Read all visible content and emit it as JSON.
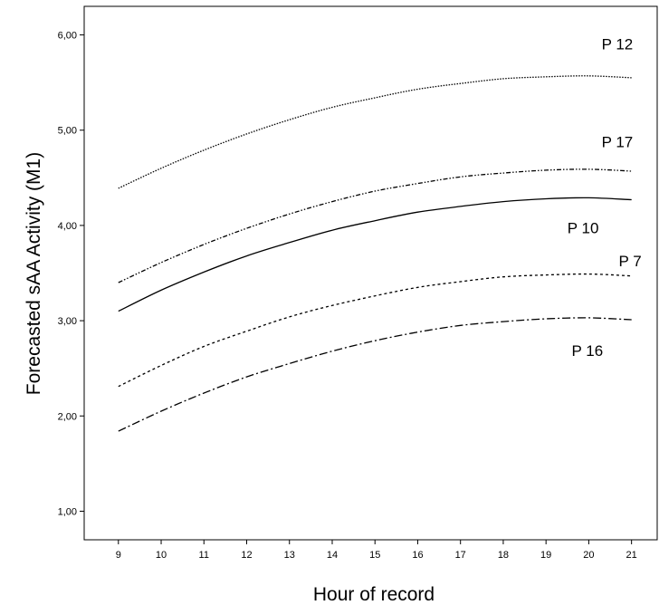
{
  "chart_data": {
    "type": "line",
    "xlabel": "Hour of record",
    "ylabel": "Forecasted sAA Activity (M1)",
    "xlim": [
      8.2,
      21.6
    ],
    "ylim": [
      0.7,
      6.3
    ],
    "x_ticks": [
      "9",
      "10",
      "11",
      "12",
      "13",
      "14",
      "15",
      "16",
      "17",
      "18",
      "19",
      "20",
      "21"
    ],
    "y_ticks": [
      "1,00",
      "2,00",
      "3,00",
      "4,00",
      "5,00",
      "6,00"
    ],
    "grid": false,
    "x": [
      9,
      10,
      11,
      12,
      13,
      14,
      15,
      16,
      17,
      18,
      19,
      20,
      21
    ],
    "series": [
      {
        "name": "P 12",
        "dash": "dotted",
        "label_at": [
          20.3,
          5.85
        ],
        "values": [
          4.39,
          4.6,
          4.79,
          4.96,
          5.11,
          5.24,
          5.34,
          5.43,
          5.49,
          5.54,
          5.56,
          5.57,
          5.55
        ]
      },
      {
        "name": "P 17",
        "dash": "dash-dot-dot",
        "label_at": [
          20.3,
          4.82
        ],
        "values": [
          3.4,
          3.61,
          3.8,
          3.97,
          4.12,
          4.25,
          4.36,
          4.44,
          4.51,
          4.55,
          4.58,
          4.59,
          4.57
        ]
      },
      {
        "name": "P 10",
        "dash": "solid",
        "label_at": [
          19.5,
          3.92
        ],
        "values": [
          3.1,
          3.32,
          3.51,
          3.68,
          3.82,
          3.95,
          4.05,
          4.14,
          4.2,
          4.25,
          4.28,
          4.29,
          4.27
        ]
      },
      {
        "name": "P 7",
        "dash": "short-dash",
        "label_at": [
          20.7,
          3.57
        ],
        "values": [
          2.31,
          2.53,
          2.73,
          2.89,
          3.04,
          3.16,
          3.26,
          3.35,
          3.41,
          3.46,
          3.48,
          3.49,
          3.47
        ]
      },
      {
        "name": "P 16",
        "dash": "dash-dot",
        "label_at": [
          19.6,
          2.63
        ],
        "values": [
          1.84,
          2.05,
          2.24,
          2.41,
          2.55,
          2.68,
          2.79,
          2.88,
          2.95,
          2.99,
          3.02,
          3.03,
          3.01
        ]
      }
    ]
  }
}
